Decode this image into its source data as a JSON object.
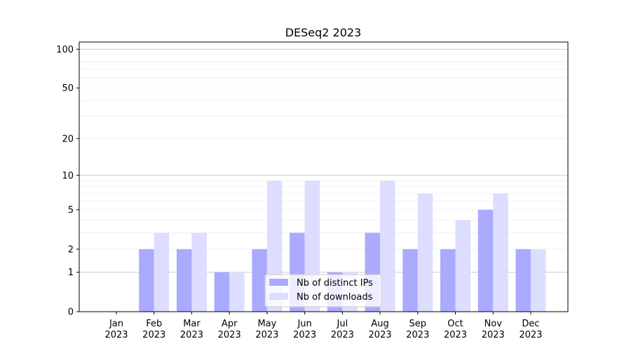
{
  "chart_data": {
    "type": "bar",
    "title": "DESeq2 2023",
    "xlabel": "",
    "ylabel": "",
    "yscale": "log(1+x)",
    "ylim": [
      0,
      113.6
    ],
    "yticks": [
      0,
      1,
      2,
      5,
      10,
      20,
      50,
      100
    ],
    "grid": true,
    "legend_position": "lower-center",
    "categories": [
      "Jan\n2023",
      "Feb\n2023",
      "Mar\n2023",
      "Apr\n2023",
      "May\n2023",
      "Jun\n2023",
      "Jul\n2023",
      "Aug\n2023",
      "Sep\n2023",
      "Oct\n2023",
      "Nov\n2023",
      "Dec\n2023"
    ],
    "series": [
      {
        "name": "Nb of distinct IPs",
        "color": "#aaaaff",
        "values": [
          0,
          2,
          2,
          1,
          2,
          3,
          1,
          3,
          2,
          2,
          5,
          2
        ]
      },
      {
        "name": "Nb of downloads",
        "color": "#ddddff",
        "values": [
          0,
          3,
          3,
          1,
          9,
          9,
          1,
          9,
          7,
          4,
          7,
          2
        ]
      }
    ]
  }
}
